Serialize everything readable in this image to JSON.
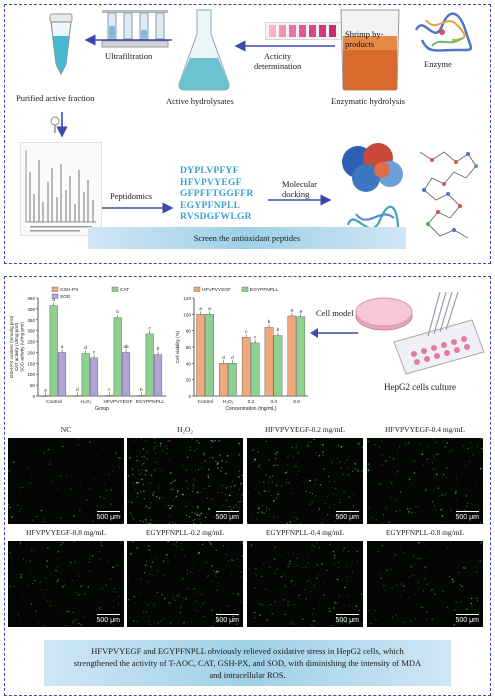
{
  "top": {
    "ultrafiltration": "Ultrafiltration",
    "activity_determination": "Acticity\ndetermination",
    "shrimp_label": "Shrimp by-\nproducts",
    "enzyme": "Enzyme",
    "purified": "Purified active fraction",
    "active_hydrolysates": "Active hydrolysates",
    "enzymatic_hydrolysis": "Enzymatic hydrolysis",
    "peptidomics": "Peptidomics",
    "molecular_docking": "Molecular\ndocking",
    "peptides": [
      "DYPLVPFYF",
      "HFVPVYEGF",
      "GFPFFTGGFFR",
      "EGYPFNPLL",
      "RVSDGFWLGR"
    ],
    "banner": "Screen the antioxidant peptides"
  },
  "bottom": {
    "cell_model": "Cell model",
    "hepg2": "HepG2 cells culture",
    "scale_text": "500 μm",
    "micrographs": [
      {
        "label": "NC",
        "density": 0.15
      },
      {
        "label": "H₂O₂",
        "density": 0.85
      },
      {
        "label": "HFVPVYEGF-0.2 mg/mL",
        "density": 0.55
      },
      {
        "label": "HFVPVYEGF-0.4 mg/mL",
        "density": 0.4
      },
      {
        "label": "HFVPVYEGF-0.8 mg/mL",
        "density": 0.3
      },
      {
        "label": "EGYPFNPLL-0.2 mg/mL",
        "density": 0.5
      },
      {
        "label": "EGYPFNPLL-0.4 mg/mL",
        "density": 0.4
      },
      {
        "label": "EGYPFNPLL-0.8 mg/mL",
        "density": 0.25
      }
    ],
    "banner": "HFVPVYEGF and EGYPFNPLL obviously relieved oxidative stress in HepG2 cells, which\nstrengthened the activity of T-AOC, CAT, GSH-PX, and SOD, with diminishing the intensity of MDA\nand intracellular ROS."
  },
  "chart_data": [
    {
      "type": "bar",
      "categories": [
        "Control",
        "H₂O₂",
        "HFVPVYEGF",
        "EGYPFNPLL"
      ],
      "xlabel": "Group",
      "ylabel": "GSH-PX content (mmol/g prot)\nCAT activity (U/mg prot)\nSOD activity (U/mg prot)",
      "ylim": [
        0,
        450
      ],
      "yticks": [
        0,
        50,
        100,
        150,
        200,
        250,
        300,
        350,
        400,
        450
      ],
      "legend_position": "top",
      "series": [
        {
          "name": "GSH-PX",
          "color": "#f0a97a",
          "values": [
            1,
            2,
            3,
            3
          ],
          "letters": [
            "a",
            "d",
            "c",
            "b"
          ]
        },
        {
          "name": "CAT",
          "color": "#8fd08f",
          "values": [
            415,
            195,
            360,
            285
          ],
          "letters": [
            "a",
            "d",
            "b",
            "c"
          ]
        },
        {
          "name": "SOD",
          "color": "#b3a3dc",
          "values": [
            200,
            175,
            200,
            190
          ],
          "letters": [
            "a",
            "c",
            "ab",
            "b"
          ]
        }
      ]
    },
    {
      "type": "bar",
      "categories": [
        "Control",
        "H₂O₂",
        "0.2",
        "0.4",
        "0.8"
      ],
      "xlabel": "Concentration (mg/mL)",
      "ylabel": "Cell viability (%)",
      "ylim": [
        0,
        120
      ],
      "yticks": [
        0,
        20,
        40,
        60,
        80,
        100,
        120
      ],
      "legend_position": "top",
      "series": [
        {
          "name": "HFVPVYEGF",
          "color": "#f0a97a",
          "values": [
            100,
            40,
            72,
            84,
            98
          ],
          "letters": [
            "a",
            "d",
            "c",
            "b",
            "a"
          ]
        },
        {
          "name": "EGYPFNPLL",
          "color": "#8fd08f",
          "values": [
            100,
            40,
            65,
            74,
            97
          ],
          "letters": [
            "a",
            "d",
            "c",
            "b",
            "a"
          ]
        }
      ]
    }
  ]
}
